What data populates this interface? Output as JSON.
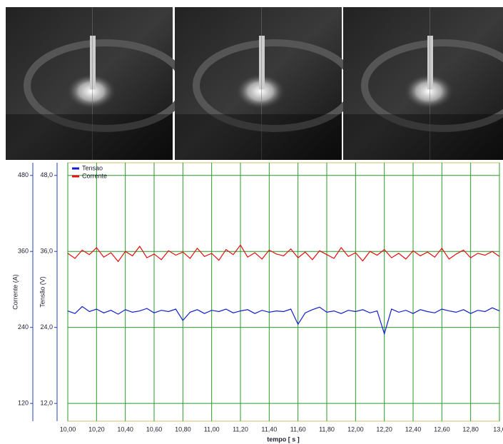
{
  "chart_data": {
    "type": "line",
    "y_label": "Corrente (A)",
    "y2_label": "Tensão (V)",
    "x_label": "tempo [ s ]",
    "x": [
      10,
      10.05,
      10.1,
      10.15,
      10.2,
      10.25,
      10.3,
      10.35,
      10.4,
      10.45,
      10.5,
      10.55,
      10.6,
      10.65,
      10.7,
      10.75,
      10.8,
      10.85,
      10.9,
      10.95,
      11,
      11.05,
      11.1,
      11.15,
      11.2,
      11.25,
      11.3,
      11.35,
      11.4,
      11.45,
      11.5,
      11.55,
      11.6,
      11.65,
      11.7,
      11.75,
      11.8,
      11.85,
      11.9,
      11.95,
      12,
      12.05,
      12.1,
      12.15,
      12.2,
      12.25,
      12.3,
      12.35,
      12.4,
      12.45,
      12.5,
      12.55,
      12.6,
      12.65,
      12.7,
      12.75,
      12.8,
      12.85,
      12.9,
      12.95,
      13
    ],
    "series": [
      {
        "name": "Tensao",
        "color": "#1020c8",
        "axis": "y2",
        "values": [
          26.6,
          26.2,
          27.3,
          26.5,
          26.9,
          26.3,
          26.7,
          26.1,
          26.8,
          26.4,
          26.6,
          27.0,
          26.3,
          26.7,
          26.5,
          26.9,
          25.1,
          26.4,
          26.8,
          26.2,
          26.7,
          26.5,
          26.9,
          26.3,
          26.6,
          26.8,
          26.2,
          26.7,
          26.4,
          26.6,
          26.5,
          26.9,
          24.5,
          26.3,
          26.8,
          27.2,
          26.4,
          26.6,
          26.2,
          26.7,
          26.5,
          26.8,
          26.3,
          26.6,
          23.0,
          26.9,
          26.4,
          26.7,
          26.2,
          26.8,
          26.5,
          26.3,
          26.9,
          26.6,
          26.4,
          26.8,
          26.2,
          26.7,
          26.5,
          27.1,
          26.6
        ]
      },
      {
        "name": "Corrente",
        "color": "#e01010",
        "values": [
          357,
          349,
          362,
          355,
          366,
          351,
          358,
          344,
          360,
          353,
          368,
          350,
          356,
          347,
          361,
          354,
          359,
          349,
          365,
          352,
          357,
          346,
          363,
          355,
          370,
          351,
          358,
          348,
          362,
          356,
          353,
          364,
          350,
          359,
          347,
          361,
          355,
          349,
          366,
          352,
          358,
          345,
          360,
          354,
          363,
          350,
          357,
          348,
          361,
          353,
          359,
          351,
          365,
          348,
          356,
          362,
          350,
          357,
          354,
          360,
          352
        ]
      }
    ],
    "xlim": [
      10,
      13
    ],
    "xticks": [
      {
        "value": 10,
        "label": "10,00"
      },
      {
        "value": 10.2,
        "label": "10,20"
      },
      {
        "value": 10.4,
        "label": "10,40"
      },
      {
        "value": 10.6,
        "label": "10,60"
      },
      {
        "value": 10.8,
        "label": "10,80"
      },
      {
        "value": 11,
        "label": "11,00"
      },
      {
        "value": 11.2,
        "label": "11,20"
      },
      {
        "value": 11.4,
        "label": "11,40"
      },
      {
        "value": 11.6,
        "label": "11,60"
      },
      {
        "value": 11.8,
        "label": "11,80"
      },
      {
        "value": 12,
        "label": "12,00"
      },
      {
        "value": 12.2,
        "label": "12,20"
      },
      {
        "value": 12.4,
        "label": "12,40"
      },
      {
        "value": 12.6,
        "label": "12,60"
      },
      {
        "value": 12.8,
        "label": "12,80"
      },
      {
        "value": 13,
        "label": "13,0"
      }
    ],
    "ylim": [
      92,
      500
    ],
    "yticks": [
      120,
      240,
      360,
      480
    ],
    "y2lim": [
      9.2,
      50
    ],
    "y2ticks": [
      {
        "value": 12,
        "label": "12,0"
      },
      {
        "value": 24,
        "label": "24,0"
      },
      {
        "value": 36,
        "label": "36,0"
      },
      {
        "value": 48,
        "label": "48,0"
      }
    ],
    "grid": true,
    "legend": "upper left"
  }
}
